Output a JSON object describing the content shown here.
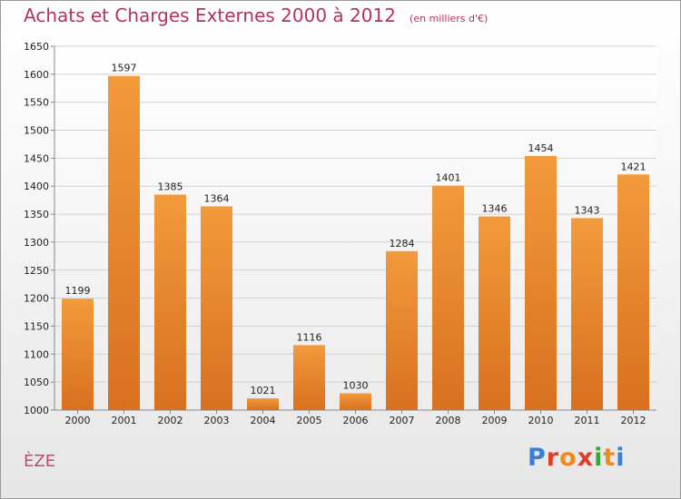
{
  "header": {
    "title": "Achats et Charges Externes 2000 à 2012",
    "subtitle": "(en milliers d'€)"
  },
  "footer": {
    "commune": "ÈZE",
    "brand": "Proxiti",
    "brand_colors": [
      "#3a7fd1",
      "#e03c2c",
      "#f08a1c",
      "#e03c2c",
      "#3aa53a",
      "#f08a1c",
      "#3a7fd1"
    ]
  },
  "colors": {
    "bar": "#f29a3c",
    "bar_dark": "#d9701f",
    "grid": "#d2d2d2"
  },
  "chart_data": {
    "type": "bar",
    "title": "Achats et Charges Externes 2000 à 2012",
    "subtitle": "(en milliers d'€)",
    "categories": [
      "2000",
      "2001",
      "2002",
      "2003",
      "2004",
      "2005",
      "2006",
      "2007",
      "2008",
      "2009",
      "2010",
      "2011",
      "2012"
    ],
    "values": [
      1199,
      1597,
      1385,
      1364,
      1021,
      1116,
      1030,
      1284,
      1401,
      1346,
      1454,
      1343,
      1421
    ],
    "ylim": [
      1000,
      1650
    ],
    "yticks": [
      1000,
      1050,
      1100,
      1150,
      1200,
      1250,
      1300,
      1350,
      1400,
      1450,
      1500,
      1550,
      1600,
      1650
    ],
    "grid": true,
    "xlabel": "",
    "ylabel": ""
  }
}
